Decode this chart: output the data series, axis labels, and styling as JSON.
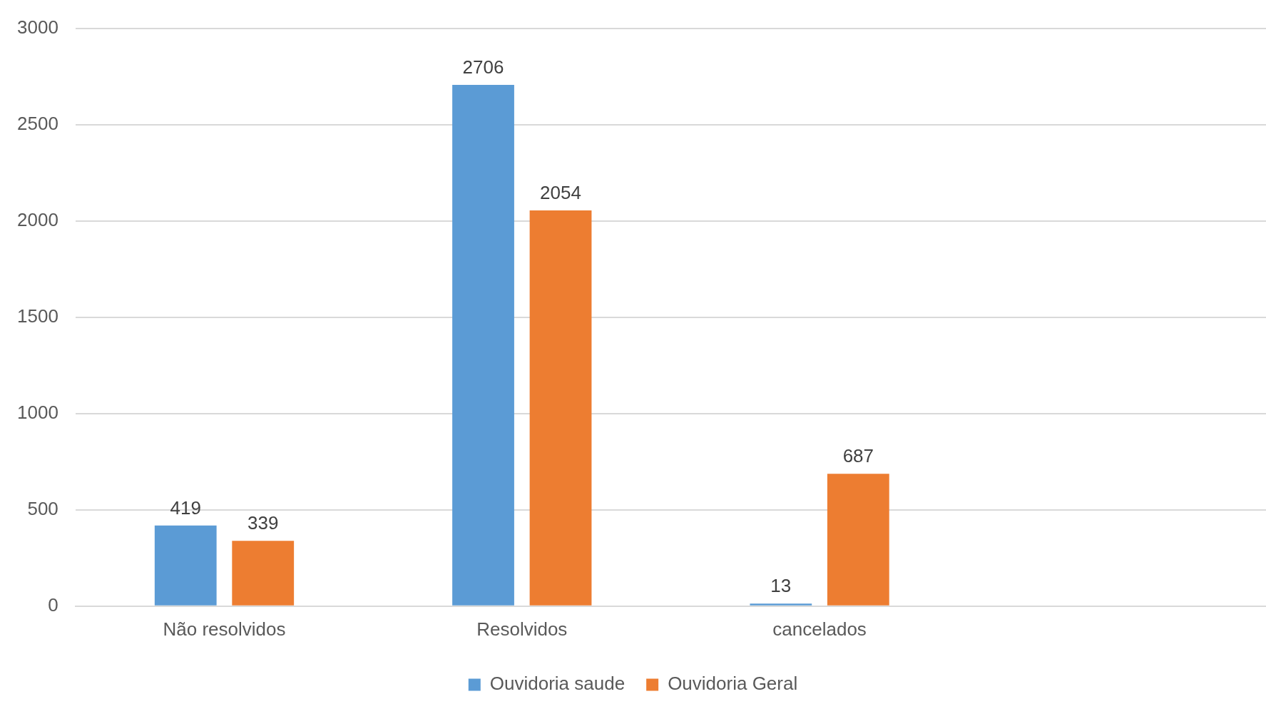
{
  "chart_data": {
    "type": "bar",
    "categories": [
      "Não resolvidos",
      "Resolvidos",
      "cancelados",
      null
    ],
    "series": [
      {
        "name": "Ouvidoria saude",
        "color": "#5b9bd5",
        "values": [
          419,
          2706,
          13,
          null
        ]
      },
      {
        "name": "Ouvidoria Geral",
        "color": "#ed7d31",
        "values": [
          339,
          2054,
          687,
          null
        ]
      }
    ],
    "ylim": [
      0,
      3000
    ],
    "yticks": [
      0,
      500,
      1000,
      1500,
      2000,
      2500,
      3000
    ],
    "grid": "y",
    "legend": "bottom",
    "data_labels": true
  }
}
